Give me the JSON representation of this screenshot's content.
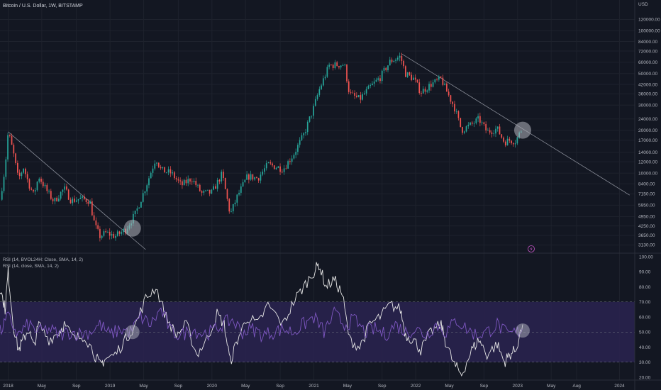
{
  "header": {
    "title": "Bitcoin / U.S. Dollar, 1W, BITSTAMP",
    "currency": "USD"
  },
  "colors": {
    "background": "#131722",
    "up": "#26a69a",
    "down": "#ef5350",
    "grid": "#1e222d",
    "trendline": "#8a8e99",
    "rsi_band": "#2a2350",
    "rsi_white": "#e6e6e6",
    "rsi_purple": "#7e57c2",
    "highlight": "#b2b5be"
  },
  "icons": {
    "lightning": "lightning-icon"
  },
  "chart_data": [
    {
      "type": "candlestick",
      "title": "Bitcoin / U.S. Dollar, 1W, BITSTAMP",
      "y_scale": "log",
      "ylim": [
        2900,
        140000
      ],
      "xlim": [
        2017.92,
        2024.15
      ],
      "y_ticks": [
        3130,
        3650,
        4250,
        4950,
        5950,
        7150,
        8400,
        10000,
        12000,
        14000,
        17000,
        20000,
        24000,
        30000,
        36000,
        42000,
        50000,
        60000,
        72000,
        84000,
        100000,
        120000
      ],
      "y_tick_labels": [
        "3130.00",
        "3650.00",
        "4250.00",
        "4950.00",
        "5950.00",
        "7150.00",
        "8400.00",
        "10000.00",
        "12000.00",
        "14000.00",
        "17000.00",
        "20000.00",
        "24000.00",
        "30000.00",
        "36000.00",
        "42000.00",
        "50000.00",
        "60000.00",
        "72000.00",
        "84000.00",
        "100000.00",
        "120000.00"
      ],
      "price_path": [
        [
          2017.92,
          6500
        ],
        [
          2017.97,
          11000
        ],
        [
          2018.0,
          19500
        ],
        [
          2018.05,
          14000
        ],
        [
          2018.1,
          9000
        ],
        [
          2018.15,
          11000
        ],
        [
          2018.2,
          8500
        ],
        [
          2018.25,
          7000
        ],
        [
          2018.3,
          9500
        ],
        [
          2018.38,
          7500
        ],
        [
          2018.45,
          6300
        ],
        [
          2018.55,
          7800
        ],
        [
          2018.62,
          6400
        ],
        [
          2018.7,
          6600
        ],
        [
          2018.8,
          6400
        ],
        [
          2018.85,
          4300
        ],
        [
          2018.9,
          3600
        ],
        [
          2018.96,
          3800
        ],
        [
          2019.05,
          3600
        ],
        [
          2019.15,
          4000
        ],
        [
          2019.25,
          5200
        ],
        [
          2019.35,
          8000
        ],
        [
          2019.45,
          12800
        ],
        [
          2019.5,
          10500
        ],
        [
          2019.6,
          10000
        ],
        [
          2019.7,
          8200
        ],
        [
          2019.8,
          9200
        ],
        [
          2019.9,
          7200
        ],
        [
          2020.0,
          7300
        ],
        [
          2020.1,
          9900
        ],
        [
          2020.18,
          5100
        ],
        [
          2020.25,
          6900
        ],
        [
          2020.35,
          9500
        ],
        [
          2020.45,
          9200
        ],
        [
          2020.55,
          11500
        ],
        [
          2020.7,
          10700
        ],
        [
          2020.8,
          13500
        ],
        [
          2020.9,
          18500
        ],
        [
          2021.0,
          29000
        ],
        [
          2021.05,
          38000
        ],
        [
          2021.15,
          57000
        ],
        [
          2021.3,
          58000
        ],
        [
          2021.35,
          36000
        ],
        [
          2021.45,
          33000
        ],
        [
          2021.55,
          40000
        ],
        [
          2021.65,
          47000
        ],
        [
          2021.75,
          61000
        ],
        [
          2021.85,
          66000
        ],
        [
          2021.9,
          50000
        ],
        [
          2021.98,
          46000
        ],
        [
          2022.05,
          37000
        ],
        [
          2022.15,
          42000
        ],
        [
          2022.25,
          46000
        ],
        [
          2022.3,
          38000
        ],
        [
          2022.38,
          29000
        ],
        [
          2022.45,
          20000
        ],
        [
          2022.55,
          22000
        ],
        [
          2022.62,
          24000
        ],
        [
          2022.7,
          19500
        ],
        [
          2022.8,
          20500
        ],
        [
          2022.87,
          16500
        ],
        [
          2022.92,
          17000
        ],
        [
          2022.98,
          16800
        ],
        [
          2023.05,
          21000
        ]
      ],
      "trendlines": [
        {
          "start": [
            2018.0,
            19500
          ],
          "end": [
            2019.35,
            2900
          ]
        },
        {
          "start": [
            2021.86,
            69000
          ],
          "end": [
            2024.1,
            7000
          ]
        }
      ],
      "highlights": [
        [
          2019.22,
          4100
        ],
        [
          2023.05,
          20000
        ]
      ]
    },
    {
      "type": "line",
      "legend": [
        "RSI (14, BVOL24H: Close, SMA, 14, 2)",
        "RSI (14, close, SMA, 14, 2)"
      ],
      "ylim": [
        20,
        100
      ],
      "y_ticks": [
        20,
        30,
        40,
        50,
        60,
        70,
        80,
        90,
        100
      ],
      "y_tick_labels": [
        "20.00",
        "30.00",
        "40.00",
        "50.00",
        "60.00",
        "70.00",
        "80.00",
        "90.00",
        "100.00"
      ],
      "band": [
        30,
        70
      ],
      "midline": 50,
      "series": [
        {
          "color": "white",
          "points": [
            [
              2017.92,
              80
            ],
            [
              2017.97,
              65
            ],
            [
              2018.0,
              90
            ],
            [
              2018.05,
              55
            ],
            [
              2018.1,
              38
            ],
            [
              2018.15,
              45
            ],
            [
              2018.2,
              52
            ],
            [
              2018.25,
              40
            ],
            [
              2018.3,
              55
            ],
            [
              2018.4,
              45
            ],
            [
              2018.5,
              50
            ],
            [
              2018.55,
              55
            ],
            [
              2018.65,
              45
            ],
            [
              2018.75,
              48
            ],
            [
              2018.85,
              35
            ],
            [
              2018.9,
              28
            ],
            [
              2018.95,
              32
            ],
            [
              2019.05,
              35
            ],
            [
              2019.15,
              45
            ],
            [
              2019.25,
              55
            ],
            [
              2019.35,
              72
            ],
            [
              2019.45,
              80
            ],
            [
              2019.55,
              60
            ],
            [
              2019.65,
              48
            ],
            [
              2019.75,
              55
            ],
            [
              2019.85,
              35
            ],
            [
              2019.95,
              45
            ],
            [
              2020.05,
              62
            ],
            [
              2020.12,
              55
            ],
            [
              2020.18,
              30
            ],
            [
              2020.25,
              45
            ],
            [
              2020.35,
              60
            ],
            [
              2020.45,
              55
            ],
            [
              2020.55,
              68
            ],
            [
              2020.7,
              55
            ],
            [
              2020.8,
              70
            ],
            [
              2020.9,
              80
            ],
            [
              2021.0,
              90
            ],
            [
              2021.05,
              95
            ],
            [
              2021.12,
              80
            ],
            [
              2021.2,
              85
            ],
            [
              2021.28,
              75
            ],
            [
              2021.35,
              45
            ],
            [
              2021.45,
              40
            ],
            [
              2021.55,
              55
            ],
            [
              2021.65,
              60
            ],
            [
              2021.75,
              68
            ],
            [
              2021.85,
              65
            ],
            [
              2021.9,
              48
            ],
            [
              2021.98,
              45
            ],
            [
              2022.05,
              38
            ],
            [
              2022.15,
              50
            ],
            [
              2022.25,
              55
            ],
            [
              2022.3,
              42
            ],
            [
              2022.38,
              28
            ],
            [
              2022.45,
              22
            ],
            [
              2022.55,
              38
            ],
            [
              2022.62,
              45
            ],
            [
              2022.7,
              35
            ],
            [
              2022.8,
              42
            ],
            [
              2022.87,
              30
            ],
            [
              2022.92,
              35
            ],
            [
              2022.98,
              38
            ],
            [
              2023.05,
              55
            ]
          ]
        },
        {
          "color": "purple",
          "points": [
            [
              2017.92,
              50
            ],
            [
              2018.0,
              60
            ],
            [
              2018.1,
              48
            ],
            [
              2018.2,
              55
            ],
            [
              2018.3,
              50
            ],
            [
              2018.4,
              52
            ],
            [
              2018.5,
              48
            ],
            [
              2018.6,
              50
            ],
            [
              2018.7,
              49
            ],
            [
              2018.8,
              50
            ],
            [
              2018.9,
              55
            ],
            [
              2019.0,
              48
            ],
            [
              2019.1,
              52
            ],
            [
              2019.2,
              50
            ],
            [
              2019.3,
              60
            ],
            [
              2019.4,
              55
            ],
            [
              2019.5,
              65
            ],
            [
              2019.6,
              50
            ],
            [
              2019.7,
              48
            ],
            [
              2019.8,
              52
            ],
            [
              2019.9,
              49
            ],
            [
              2020.0,
              50
            ],
            [
              2020.1,
              55
            ],
            [
              2020.2,
              58
            ],
            [
              2020.3,
              50
            ],
            [
              2020.4,
              52
            ],
            [
              2020.5,
              48
            ],
            [
              2020.6,
              50
            ],
            [
              2020.7,
              52
            ],
            [
              2020.8,
              50
            ],
            [
              2020.9,
              55
            ],
            [
              2021.0,
              60
            ],
            [
              2021.1,
              50
            ],
            [
              2021.2,
              62
            ],
            [
              2021.3,
              55
            ],
            [
              2021.4,
              58
            ],
            [
              2021.5,
              50
            ],
            [
              2021.6,
              52
            ],
            [
              2021.7,
              48
            ],
            [
              2021.8,
              55
            ],
            [
              2021.9,
              50
            ],
            [
              2022.0,
              52
            ],
            [
              2022.1,
              48
            ],
            [
              2022.2,
              55
            ],
            [
              2022.3,
              50
            ],
            [
              2022.4,
              58
            ],
            [
              2022.5,
              52
            ],
            [
              2022.6,
              48
            ],
            [
              2022.7,
              50
            ],
            [
              2022.8,
              55
            ],
            [
              2022.9,
              48
            ],
            [
              2023.0,
              50
            ],
            [
              2023.05,
              52
            ]
          ]
        }
      ],
      "highlights": [
        [
          2019.22,
          50
        ],
        [
          2023.05,
          51
        ]
      ]
    }
  ],
  "time_axis": {
    "ticks": [
      {
        "x": 2018.0,
        "label": "2018"
      },
      {
        "x": 2018.33,
        "label": "May"
      },
      {
        "x": 2018.67,
        "label": "Sep"
      },
      {
        "x": 2019.0,
        "label": "2019"
      },
      {
        "x": 2019.33,
        "label": "May"
      },
      {
        "x": 2019.67,
        "label": "Sep"
      },
      {
        "x": 2020.0,
        "label": "2020"
      },
      {
        "x": 2020.33,
        "label": "May"
      },
      {
        "x": 2020.67,
        "label": "Sep"
      },
      {
        "x": 2021.0,
        "label": "2021"
      },
      {
        "x": 2021.33,
        "label": "May"
      },
      {
        "x": 2021.67,
        "label": "Sep"
      },
      {
        "x": 2022.0,
        "label": "2022"
      },
      {
        "x": 2022.33,
        "label": "May"
      },
      {
        "x": 2022.67,
        "label": "Sep"
      },
      {
        "x": 2023.0,
        "label": "2023"
      },
      {
        "x": 2023.33,
        "label": "May"
      },
      {
        "x": 2023.58,
        "label": "Aug"
      },
      {
        "x": 2024.0,
        "label": "2024"
      }
    ]
  }
}
